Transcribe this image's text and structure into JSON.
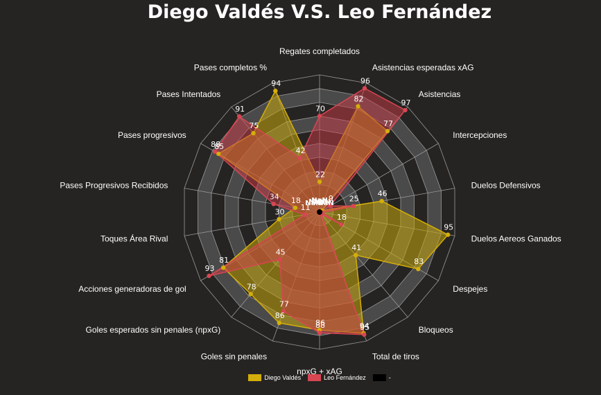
{
  "colors": {
    "background": "#262422",
    "grid": "#9a9a9a",
    "band_dark": "#3b3b3b",
    "band_light": "#4a4a4a",
    "series_a_fill": "#c9a80c",
    "series_a_line": "#d4ae0a",
    "series_b_fill": "#cc3b47",
    "series_b_line": "#d84652",
    "series_c": "#000000"
  },
  "chart_data": {
    "type": "radar",
    "title": "Diego Valdés V.S. Leo Fernández",
    "rlim": [
      0,
      100
    ],
    "grid": true,
    "legend_position": "bottom",
    "categories": [
      "Regates completados",
      "Asistencias esperadas xAG",
      "Asistencias",
      "Intercepciones",
      "Duelos Defensivos",
      "Duelos Aereos Ganados",
      "Despejes",
      "Bloqueos",
      "Total de tiros",
      "npxG + xAG",
      "Goles sin penales",
      "Goles esperados sin penales (npxG)",
      "Acciones generadoras de gol",
      "Toques Área Rival",
      "Pases Progresivos Recibidos",
      "Pases progresivos",
      "Pases Intentados",
      "Pases completos %"
    ],
    "series": [
      {
        "name": "Diego Valdés",
        "values": [
          22,
          82,
          77,
          2,
          46,
          95,
          83,
          41,
          94,
          86,
          86,
          78,
          81,
          30,
          18,
          85,
          75,
          94
        ]
      },
      {
        "name": "Leo Fernández",
        "values": [
          70,
          96,
          97,
          9,
          25,
          2,
          18,
          2,
          95,
          88,
          77,
          45,
          93,
          11,
          34,
          88,
          91,
          42
        ]
      },
      {
        "name": "-",
        "values": [
          0,
          0,
          0,
          0,
          0,
          0,
          0,
          0,
          0,
          0,
          0,
          0,
          0,
          0,
          0,
          0,
          0,
          0
        ]
      }
    ],
    "nan_label": "NaN",
    "value_labels": {
      "Diego Valdés": [
        "22",
        "82",
        "77",
        "",
        "46",
        "95",
        "83",
        "41",
        "94",
        "86",
        "86",
        "78",
        "81",
        "30",
        "18",
        "85",
        "75",
        "94"
      ],
      "Leo Fernández": [
        "70",
        "96",
        "97",
        "9",
        "25",
        "",
        "18",
        "",
        "95",
        "88",
        "77",
        "45",
        "93",
        "11",
        "34",
        "88",
        "91",
        "42"
      ]
    }
  }
}
